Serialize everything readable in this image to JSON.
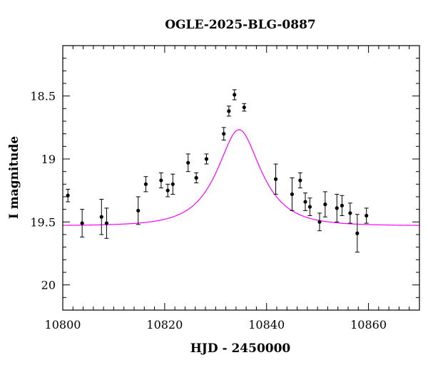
{
  "chart_data": {
    "type": "scatter",
    "title": "OGLE-2025-BLG-0887",
    "xlabel": "HJD - 2450000",
    "ylabel": "I magnitude",
    "xlim": [
      10800,
      10870
    ],
    "ylim": [
      20.2,
      18.1
    ],
    "y_inverted": true,
    "grid": false,
    "x_major_ticks": [
      10800,
      10820,
      10840,
      10860
    ],
    "x_tick_labels": [
      "10800",
      "10820",
      "10840",
      "10860"
    ],
    "x_minor_step": 2,
    "y_major_ticks": [
      18.5,
      19,
      19.5,
      20
    ],
    "y_tick_labels": [
      "18.5",
      "19",
      "19.5",
      "20"
    ],
    "y_minor_step": 0.1,
    "colors": {
      "points": "#000000",
      "model": "#ff00ff"
    },
    "series": [
      {
        "kind": "points_with_errorbars",
        "points": [
          {
            "x": 10801.0,
            "y": 19.29,
            "err": 0.05
          },
          {
            "x": 10803.8,
            "y": 19.51,
            "err": 0.11
          },
          {
            "x": 10807.6,
            "y": 19.46,
            "err": 0.14
          },
          {
            "x": 10808.6,
            "y": 19.51,
            "err": 0.12
          },
          {
            "x": 10814.8,
            "y": 19.41,
            "err": 0.11
          },
          {
            "x": 10816.3,
            "y": 19.2,
            "err": 0.06
          },
          {
            "x": 10819.3,
            "y": 19.17,
            "err": 0.06
          },
          {
            "x": 10820.6,
            "y": 19.25,
            "err": 0.05
          },
          {
            "x": 10821.6,
            "y": 19.2,
            "err": 0.08
          },
          {
            "x": 10824.6,
            "y": 19.03,
            "err": 0.07
          },
          {
            "x": 10826.2,
            "y": 19.15,
            "err": 0.04
          },
          {
            "x": 10828.2,
            "y": 19.0,
            "err": 0.04
          },
          {
            "x": 10831.6,
            "y": 18.8,
            "err": 0.05
          },
          {
            "x": 10832.6,
            "y": 18.62,
            "err": 0.04
          },
          {
            "x": 10833.7,
            "y": 18.49,
            "err": 0.04
          },
          {
            "x": 10835.6,
            "y": 18.59,
            "err": 0.03
          },
          {
            "x": 10841.8,
            "y": 19.16,
            "err": 0.12
          },
          {
            "x": 10845.0,
            "y": 19.28,
            "err": 0.13
          },
          {
            "x": 10846.6,
            "y": 19.17,
            "err": 0.06
          },
          {
            "x": 10847.6,
            "y": 19.34,
            "err": 0.07
          },
          {
            "x": 10848.5,
            "y": 19.38,
            "err": 0.07
          },
          {
            "x": 10850.4,
            "y": 19.5,
            "err": 0.07
          },
          {
            "x": 10851.5,
            "y": 19.36,
            "err": 0.1
          },
          {
            "x": 10853.8,
            "y": 19.39,
            "err": 0.11
          },
          {
            "x": 10854.8,
            "y": 19.37,
            "err": 0.08
          },
          {
            "x": 10856.4,
            "y": 19.43,
            "err": 0.08
          },
          {
            "x": 10857.8,
            "y": 19.59,
            "err": 0.15
          },
          {
            "x": 10859.6,
            "y": 19.45,
            "err": 0.06
          }
        ]
      },
      {
        "kind": "model_curve",
        "model": "point-source point-lens",
        "params": {
          "t0": 10834.6,
          "u0": 0.55,
          "tE": 7.0,
          "I_base": 19.53
        }
      }
    ]
  }
}
